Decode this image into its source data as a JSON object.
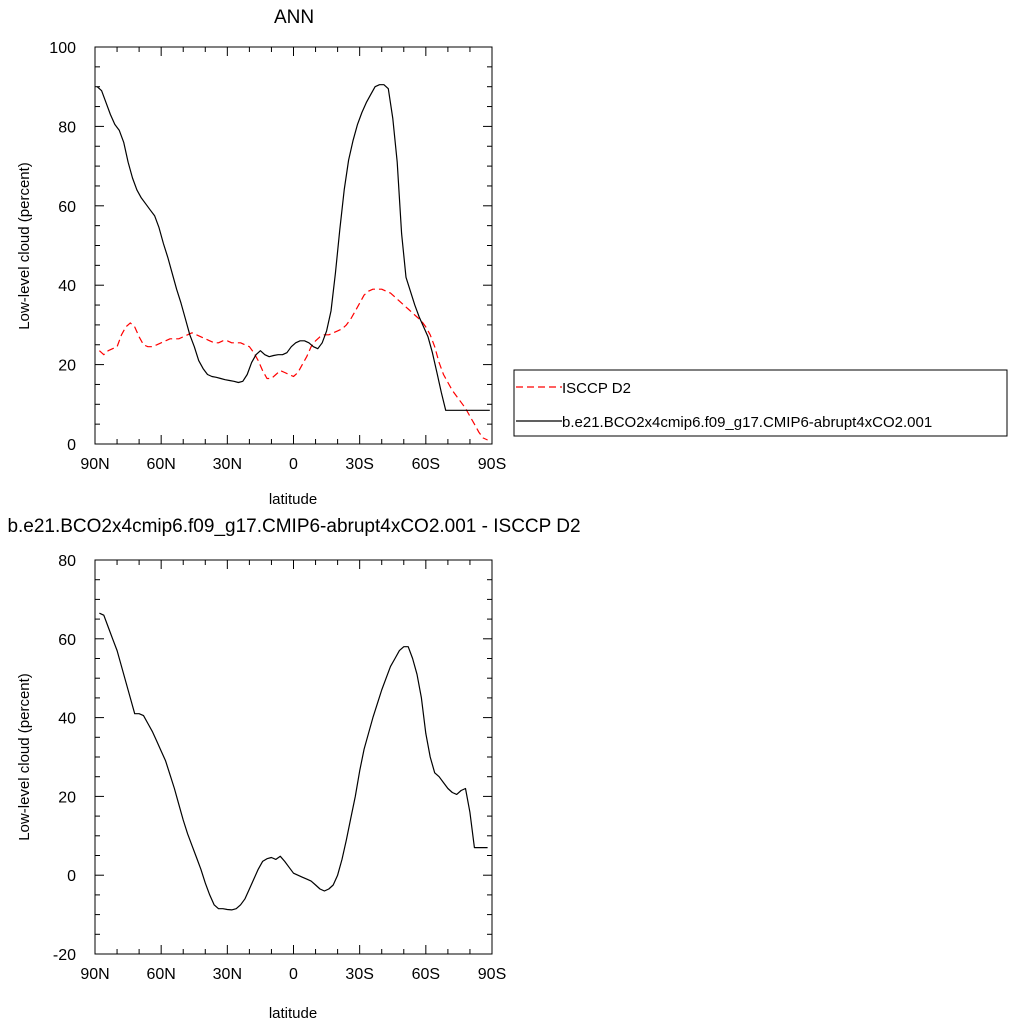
{
  "chart_data": [
    {
      "type": "line",
      "title": "ANN",
      "xlabel": "latitude",
      "ylabel": "Low-level cloud (percent)",
      "xlim": [
        90,
        -90
      ],
      "ylim": [
        0,
        100
      ],
      "x_ticks": [
        90,
        60,
        30,
        0,
        -30,
        -60,
        -90
      ],
      "x_tick_labels": [
        "90N",
        "60N",
        "30N",
        "0",
        "30S",
        "60S",
        "90S"
      ],
      "y_ticks": [
        0,
        20,
        40,
        60,
        80,
        100
      ],
      "y_tick_labels": [
        "0",
        "20",
        "40",
        "60",
        "80",
        "100"
      ],
      "legend_position": "right",
      "series": [
        {
          "name": "ISCCP D2",
          "color": "#ff0000",
          "style": "dashed",
          "x": [
            88,
            86,
            84,
            82,
            80,
            78,
            76,
            74,
            72,
            70,
            68,
            66,
            64,
            62,
            60,
            58,
            56,
            54,
            52,
            50,
            48,
            46,
            44,
            42,
            40,
            38,
            36,
            34,
            32,
            30,
            28,
            26,
            24,
            22,
            20,
            18,
            16,
            14,
            12,
            10,
            8,
            6,
            4,
            2,
            0,
            -2,
            -4,
            -6,
            -8,
            -10,
            -12,
            -14,
            -16,
            -18,
            -20,
            -22,
            -24,
            -26,
            -28,
            -30,
            -32,
            -34,
            -36,
            -38,
            -40,
            -42,
            -44,
            -46,
            -48,
            -50,
            -52,
            -54,
            -56,
            -58,
            -60,
            -62,
            -64,
            -66,
            -68,
            -70,
            -72,
            -74,
            -76,
            -78,
            -80,
            -82,
            -84,
            -86,
            -88
          ],
          "values": [
            23.5,
            22.5,
            23.5,
            24.0,
            24.5,
            27.5,
            29.5,
            30.5,
            29.5,
            27.0,
            25.0,
            24.5,
            24.5,
            25.0,
            25.5,
            26.0,
            26.5,
            26.5,
            26.5,
            27.0,
            27.5,
            28.0,
            27.5,
            27.0,
            26.5,
            26.0,
            25.5,
            25.5,
            26.0,
            26.0,
            25.5,
            25.5,
            25.5,
            25.0,
            24.5,
            23.0,
            21.0,
            18.5,
            16.5,
            16.5,
            17.5,
            18.5,
            18.0,
            17.5,
            17.0,
            18.0,
            20.0,
            22.0,
            24.5,
            26.0,
            27.0,
            27.5,
            27.5,
            28.0,
            28.5,
            29.0,
            30.0,
            31.5,
            33.5,
            35.5,
            37.5,
            38.5,
            39.0,
            39.0,
            39.0,
            38.5,
            38.0,
            37.0,
            36.0,
            35.0,
            34.0,
            33.0,
            32.0,
            31.0,
            29.5,
            27.5,
            24.5,
            20.5,
            17.5,
            15.5,
            13.5,
            12.0,
            10.5,
            9.0,
            7.0,
            5.0,
            3.0,
            1.5,
            1.0
          ]
        },
        {
          "name": "b.e21.BCO2x4cmip6.f09_g17.CMIP6-abrupt4xCO2.001",
          "color": "#000000",
          "style": "solid",
          "x": [
            89,
            87,
            85,
            83,
            81,
            79,
            77,
            75,
            73,
            71,
            69,
            67,
            65,
            63,
            61,
            59,
            57,
            55,
            53,
            51,
            49,
            47,
            45,
            43,
            41,
            39,
            37,
            35,
            33,
            31,
            29,
            27,
            25,
            23,
            21,
            19,
            17,
            15,
            13,
            11,
            9,
            7,
            5,
            3,
            1,
            -1,
            -3,
            -5,
            -7,
            -9,
            -11,
            -13,
            -15,
            -17,
            -19,
            -21,
            -23,
            -25,
            -27,
            -29,
            -31,
            -33,
            -35,
            -37,
            -39,
            -41,
            -43,
            -45,
            -47,
            -49,
            -51,
            -53,
            -55,
            -57,
            -59,
            -61,
            -63,
            -65,
            -67,
            -69,
            -71,
            -73,
            -75,
            -77,
            -79,
            -81,
            -83,
            -85,
            -87,
            -89
          ],
          "values": [
            90.0,
            89.0,
            86.0,
            83.0,
            80.5,
            79.0,
            76.0,
            71.0,
            67.0,
            64.0,
            62.0,
            60.5,
            59.0,
            57.5,
            54.5,
            50.5,
            47.0,
            43.0,
            39.0,
            35.5,
            31.5,
            27.5,
            24.5,
            21.0,
            19.0,
            17.5,
            17.0,
            16.8,
            16.5,
            16.2,
            16.0,
            15.8,
            15.5,
            15.8,
            17.5,
            20.5,
            22.5,
            23.5,
            22.5,
            22.0,
            22.3,
            22.5,
            22.5,
            23.0,
            24.5,
            25.5,
            26.0,
            26.0,
            25.5,
            24.5,
            24.0,
            25.5,
            28.5,
            33.5,
            43.0,
            54.0,
            64.0,
            71.5,
            76.5,
            80.5,
            83.5,
            86.0,
            88.0,
            90.0,
            90.5,
            90.5,
            89.5,
            82.0,
            71.0,
            53.0,
            42.0,
            38.5,
            35.0,
            32.0,
            29.5,
            27.0,
            23.0,
            18.0,
            13.0,
            8.5,
            8.5,
            8.5,
            8.5,
            8.5,
            8.5,
            8.5,
            8.5,
            8.5,
            8.5,
            8.5
          ]
        }
      ]
    },
    {
      "type": "line",
      "title": "b.e21.BCO2x4cmip6.f09_g17.CMIP6-abrupt4xCO2.001 - ISCCP D2",
      "xlabel": "latitude",
      "ylabel": "Low-level cloud (percent)",
      "xlim": [
        90,
        -90
      ],
      "ylim": [
        -20,
        80
      ],
      "x_ticks": [
        90,
        60,
        30,
        0,
        -30,
        -60,
        -90
      ],
      "x_tick_labels": [
        "90N",
        "60N",
        "30N",
        "0",
        "30S",
        "60S",
        "90S"
      ],
      "y_ticks": [
        -20,
        0,
        20,
        40,
        60,
        80
      ],
      "y_tick_labels": [
        "-20",
        "0",
        "20",
        "40",
        "60",
        "80"
      ],
      "series": [
        {
          "color": "#000000",
          "style": "solid",
          "x": [
            88,
            86,
            84,
            82,
            80,
            78,
            76,
            74,
            72,
            70,
            68,
            66,
            64,
            62,
            60,
            58,
            56,
            54,
            52,
            50,
            48,
            46,
            44,
            42,
            40,
            38,
            36,
            34,
            32,
            30,
            28,
            26,
            24,
            22,
            20,
            18,
            16,
            14,
            12,
            10,
            8,
            6,
            4,
            2,
            0,
            -2,
            -4,
            -6,
            -8,
            -10,
            -12,
            -14,
            -16,
            -18,
            -20,
            -22,
            -24,
            -26,
            -28,
            -30,
            -32,
            -34,
            -36,
            -38,
            -40,
            -42,
            -44,
            -46,
            -48,
            -50,
            -52,
            -54,
            -56,
            -58,
            -60,
            -62,
            -64,
            -66,
            -68,
            -70,
            -72,
            -74,
            -76,
            -78,
            -80,
            -82,
            -84,
            -86,
            -88
          ],
          "values": [
            66.5,
            66.0,
            63.0,
            60.0,
            57.0,
            53.0,
            49.0,
            45.0,
            41.0,
            41.0,
            40.5,
            38.5,
            36.5,
            34.0,
            31.5,
            29.0,
            25.5,
            22.0,
            18.0,
            14.0,
            10.5,
            7.5,
            4.5,
            1.5,
            -2.0,
            -5.0,
            -7.5,
            -8.5,
            -8.5,
            -8.7,
            -8.8,
            -8.5,
            -7.5,
            -6.0,
            -3.5,
            -1.0,
            1.5,
            3.5,
            4.2,
            4.5,
            4.0,
            4.8,
            3.5,
            2.0,
            0.5,
            0.0,
            -0.5,
            -1.0,
            -1.5,
            -2.5,
            -3.5,
            -4.0,
            -3.5,
            -2.5,
            0.0,
            4.0,
            9.0,
            14.5,
            20.0,
            26.5,
            32.0,
            36.0,
            40.0,
            43.5,
            47.0,
            50.0,
            53.0,
            55.0,
            57.0,
            58.0,
            58.0,
            55.0,
            51.0,
            45.0,
            36.0,
            30.0,
            26.0,
            25.0,
            23.5,
            22.0,
            21.0,
            20.5,
            21.5,
            22.0,
            16.0,
            7.0,
            7.0,
            7.0,
            7.0
          ]
        }
      ]
    }
  ]
}
